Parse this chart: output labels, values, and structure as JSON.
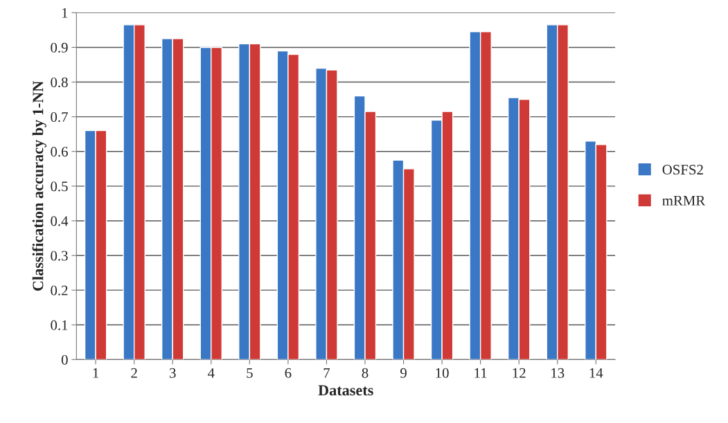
{
  "chart_data": {
    "type": "bar",
    "xlabel": "Datasets",
    "ylabel": "Classification accuracy by 1-NN",
    "categories": [
      "1",
      "2",
      "3",
      "4",
      "5",
      "6",
      "7",
      "8",
      "9",
      "10",
      "11",
      "12",
      "13",
      "14"
    ],
    "series": [
      {
        "name": "OSFS2",
        "color": "#3a77c4",
        "values": [
          0.66,
          0.965,
          0.925,
          0.9,
          0.91,
          0.89,
          0.84,
          0.76,
          0.575,
          0.69,
          0.945,
          0.755,
          0.965,
          0.63
        ]
      },
      {
        "name": "mRMR",
        "color": "#d03a36",
        "values": [
          0.66,
          0.965,
          0.925,
          0.9,
          0.91,
          0.88,
          0.835,
          0.715,
          0.55,
          0.715,
          0.945,
          0.75,
          0.965,
          0.62
        ]
      }
    ],
    "ylim": [
      0,
      1
    ],
    "yticks": [
      0,
      0.1,
      0.2,
      0.3,
      0.4,
      0.5,
      0.6,
      0.7,
      0.8,
      0.9,
      1
    ],
    "grid": "y",
    "legend": "right"
  }
}
